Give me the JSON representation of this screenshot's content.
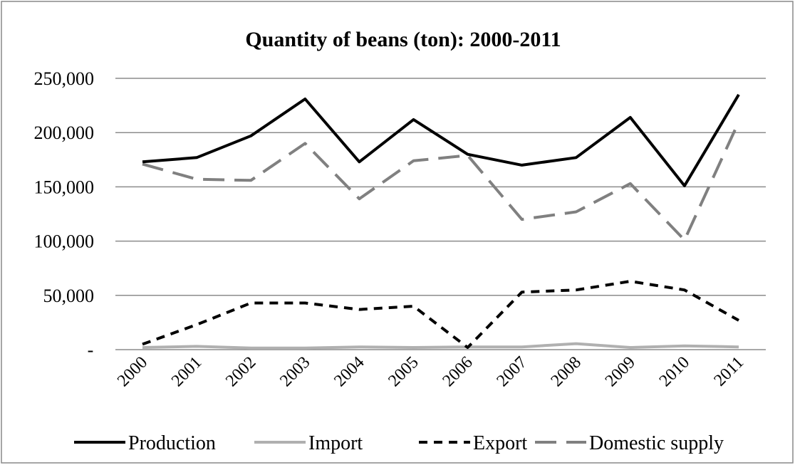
{
  "chart_data": {
    "type": "line",
    "title": "Quantity of beans (ton): 2000-2011",
    "xlabel": "",
    "ylabel": "",
    "categories": [
      "2000",
      "2001",
      "2002",
      "2003",
      "2004",
      "2005",
      "2006",
      "2007",
      "2008",
      "2009",
      "2010",
      "2011"
    ],
    "ylim": [
      0,
      250000
    ],
    "y_ticks": [
      0,
      50000,
      100000,
      150000,
      200000,
      250000
    ],
    "y_tick_labels": [
      "-",
      "50,000",
      "100,000",
      "150,000",
      "200,000",
      "250,000"
    ],
    "grid": true,
    "legend_position": "bottom",
    "series": [
      {
        "name": "Production",
        "color": "#000000",
        "dash": "solid",
        "values": [
          173000,
          177000,
          197000,
          231000,
          173000,
          212000,
          180000,
          170000,
          177000,
          214000,
          151000,
          235000
        ]
      },
      {
        "name": "Import",
        "color": "#b0b0b0",
        "dash": "solid",
        "values": [
          2000,
          3000,
          1500,
          1500,
          2500,
          2000,
          2500,
          2500,
          5500,
          2000,
          3500,
          2500
        ]
      },
      {
        "name": "Export",
        "color": "#000000",
        "dash": "short",
        "values": [
          5000,
          23000,
          43000,
          43000,
          37000,
          40000,
          2000,
          53000,
          55000,
          63000,
          55000,
          27000
        ]
      },
      {
        "name": "Domestic supply",
        "color": "#808080",
        "dash": "long",
        "values": [
          171000,
          157000,
          156000,
          190000,
          139000,
          174000,
          179000,
          120000,
          127000,
          153000,
          101000,
          210000
        ]
      }
    ]
  }
}
